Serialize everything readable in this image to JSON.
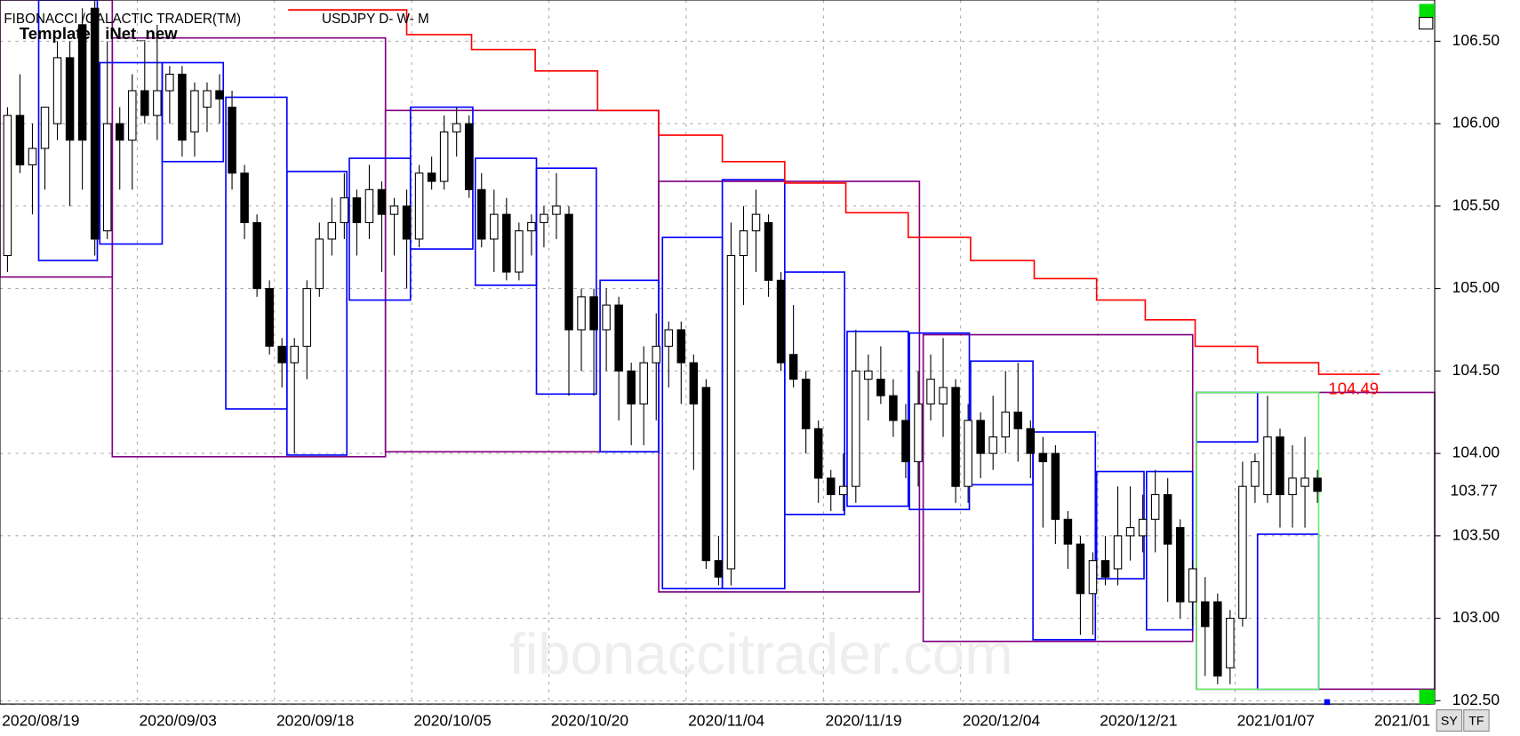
{
  "chart_data": {
    "type": "candlestick",
    "title": "FIBONACCI /GALACTIC TRADER(TM)",
    "subtitle": "USDJPY D- W- M",
    "template": "Template : iNet_new",
    "watermark": "fibonaccitrader.com",
    "buttons": [
      "SY",
      "TF"
    ],
    "up_color": "#ffffff",
    "down_color": "#000000",
    "grid": true,
    "xlim": [
      -0.6,
      114.4
    ],
    "ylim": [
      102.48,
      106.75
    ],
    "xticks": [
      {
        "value": -0.6,
        "label": "2020/08/19"
      },
      {
        "value": 10.4,
        "label": "2020/09/03"
      },
      {
        "value": 21.4,
        "label": "2020/09/18"
      },
      {
        "value": 32.4,
        "label": "2020/10/05"
      },
      {
        "value": 43.4,
        "label": "2020/10/20"
      },
      {
        "value": 54.4,
        "label": "2020/11/04"
      },
      {
        "value": 65.4,
        "label": "2020/11/19"
      },
      {
        "value": 76.4,
        "label": "2020/12/04"
      },
      {
        "value": 87.4,
        "label": "2020/12/21"
      },
      {
        "value": 98.4,
        "label": "2021/01/07"
      },
      {
        "value": 109.4,
        "label": "2021/01"
      }
    ],
    "yticks": [
      {
        "value": 106.5,
        "label": "106.50"
      },
      {
        "value": 106,
        "label": "106.00"
      },
      {
        "value": 105.5,
        "label": "105.50"
      },
      {
        "value": 105,
        "label": "105.00"
      },
      {
        "value": 104.5,
        "label": "104.50"
      },
      {
        "value": 104,
        "label": "104.00"
      },
      {
        "value": 103.5,
        "label": "103.50"
      },
      {
        "value": 103,
        "label": "103.00"
      },
      {
        "value": 102.5,
        "label": "102.50"
      }
    ],
    "last_price": 103.77,
    "resistance_label": 104.49,
    "resistance_color": "#ff0000",
    "resistance_steps": [
      [
        22.5,
        32,
        106.69
      ],
      [
        32,
        37.2,
        106.54
      ],
      [
        37.2,
        42.3,
        106.45
      ],
      [
        42.3,
        47.3,
        106.32
      ],
      [
        47.3,
        52.2,
        106.08
      ],
      [
        52.2,
        57.3,
        105.93
      ],
      [
        57.3,
        62.3,
        105.77
      ],
      [
        62.3,
        67.2,
        105.64
      ],
      [
        67.2,
        72.2,
        105.46
      ],
      [
        72.2,
        77.2,
        105.31
      ],
      [
        77.2,
        82.3,
        105.17
      ],
      [
        82.3,
        87.3,
        105.06
      ],
      [
        87.3,
        91.2,
        104.93
      ],
      [
        91.2,
        95.2,
        104.81
      ],
      [
        95.2,
        100.2,
        104.65
      ],
      [
        100.2,
        105.1,
        104.55
      ],
      [
        105.1,
        110,
        104.48
      ]
    ],
    "boxes": [
      {
        "color": "#800080",
        "x": [
          -0.6,
          8.4
        ],
        "y": [
          105.07,
          106.75
        ]
      },
      {
        "color": "#800080",
        "x": [
          8.4,
          30.3
        ],
        "y": [
          103.98,
          106.52
        ]
      },
      {
        "color": "#800080",
        "x": [
          30.3,
          52.2
        ],
        "y": [
          104.01,
          106.08
        ]
      },
      {
        "color": "#800080",
        "x": [
          52.2,
          73.1
        ],
        "y": [
          103.16,
          105.65
        ]
      },
      {
        "color": "#800080",
        "x": [
          73.4,
          95
        ],
        "y": [
          102.86,
          104.72
        ]
      },
      {
        "color": "#800080",
        "x": [
          95.3,
          114.4
        ],
        "y": [
          102.57,
          104.37
        ]
      },
      {
        "color": "#0000ff",
        "x": [
          2.5,
          7.2
        ],
        "y": [
          105.17,
          106.75
        ]
      },
      {
        "color": "#0000ff",
        "x": [
          7.4,
          12.4
        ],
        "y": [
          105.27,
          106.37
        ]
      },
      {
        "color": "#0000ff",
        "x": [
          12.4,
          17.3
        ],
        "y": [
          105.77,
          106.37
        ]
      },
      {
        "color": "#0000ff",
        "x": [
          17.5,
          22.4
        ],
        "y": [
          104.27,
          106.16
        ]
      },
      {
        "color": "#0000ff",
        "x": [
          22.4,
          27.2
        ],
        "y": [
          103.99,
          105.71
        ]
      },
      {
        "color": "#0000ff",
        "x": [
          27.4,
          32.3
        ],
        "y": [
          104.93,
          105.79
        ]
      },
      {
        "color": "#0000ff",
        "x": [
          32.3,
          37.3
        ],
        "y": [
          105.24,
          106.1
        ]
      },
      {
        "color": "#0000ff",
        "x": [
          37.5,
          42.4
        ],
        "y": [
          105.02,
          105.79
        ]
      },
      {
        "color": "#0000ff",
        "x": [
          42.4,
          47.2
        ],
        "y": [
          104.36,
          105.73
        ]
      },
      {
        "color": "#0000ff",
        "x": [
          47.5,
          52.2
        ],
        "y": [
          104.01,
          105.05
        ]
      },
      {
        "color": "#0000ff",
        "x": [
          52.5,
          57.3
        ],
        "y": [
          103.18,
          105.31
        ]
      },
      {
        "color": "#0000ff",
        "x": [
          57.3,
          62.3
        ],
        "y": [
          103.18,
          105.66
        ]
      },
      {
        "color": "#0000ff",
        "x": [
          62.3,
          67.1
        ],
        "y": [
          103.63,
          105.1
        ]
      },
      {
        "color": "#0000ff",
        "x": [
          67.3,
          72.2
        ],
        "y": [
          103.68,
          104.74
        ]
      },
      {
        "color": "#0000ff",
        "x": [
          72.3,
          77.1
        ],
        "y": [
          103.66,
          104.73
        ]
      },
      {
        "color": "#0000ff",
        "x": [
          77.2,
          82.2
        ],
        "y": [
          103.81,
          104.56
        ]
      },
      {
        "color": "#0000ff",
        "x": [
          82.2,
          87.2
        ],
        "y": [
          102.87,
          104.13
        ]
      },
      {
        "color": "#0000ff",
        "x": [
          87.3,
          91.1
        ],
        "y": [
          103.24,
          103.89
        ]
      },
      {
        "color": "#0000ff",
        "x": [
          91.3,
          95
        ],
        "y": [
          102.93,
          103.89
        ]
      },
      {
        "color": "#0000ff",
        "x": [
          95.3,
          100.2
        ],
        "y": [
          104.07,
          104.37
        ]
      },
      {
        "color": "#0000ff",
        "x": [
          100.2,
          105.1
        ],
        "y": [
          102.57,
          103.51
        ]
      },
      {
        "color": "#66ee66",
        "x": [
          95.3,
          105.1
        ],
        "y": [
          102.57,
          104.37
        ]
      }
    ],
    "ohlc": [
      [
        105.2,
        106.1,
        105.1,
        106.05
      ],
      [
        106.05,
        106.3,
        105.7,
        105.75
      ],
      [
        105.75,
        106.0,
        105.45,
        105.85
      ],
      [
        105.85,
        106.1,
        105.6,
        106.1
      ],
      [
        106.0,
        106.5,
        105.9,
        106.4
      ],
      [
        106.4,
        106.5,
        105.5,
        105.9
      ],
      [
        106.6,
        106.7,
        105.6,
        105.9
      ],
      [
        106.7,
        106.8,
        105.2,
        105.3
      ],
      [
        105.35,
        106.5,
        105.3,
        106.0
      ],
      [
        106.0,
        106.1,
        105.6,
        105.9
      ],
      [
        105.9,
        106.3,
        105.6,
        106.2
      ],
      [
        106.2,
        106.5,
        106.0,
        106.05
      ],
      [
        106.05,
        106.6,
        105.9,
        106.2
      ],
      [
        106.2,
        106.35,
        106.0,
        106.3
      ],
      [
        106.3,
        106.35,
        105.8,
        105.9
      ],
      [
        105.95,
        106.25,
        105.8,
        106.2
      ],
      [
        106.1,
        106.25,
        105.95,
        106.2
      ],
      [
        106.2,
        106.3,
        106.0,
        106.15
      ],
      [
        106.1,
        106.2,
        105.6,
        105.7
      ],
      [
        105.7,
        105.75,
        105.3,
        105.4
      ],
      [
        105.4,
        105.45,
        104.95,
        105.0
      ],
      [
        105.0,
        105.05,
        104.6,
        104.65
      ],
      [
        104.65,
        104.7,
        104.4,
        104.55
      ],
      [
        104.55,
        104.7,
        104.0,
        104.65
      ],
      [
        104.65,
        105.05,
        104.45,
        105.0
      ],
      [
        105.0,
        105.4,
        104.95,
        105.3
      ],
      [
        105.3,
        105.55,
        105.2,
        105.4
      ],
      [
        105.4,
        105.7,
        105.3,
        105.55
      ],
      [
        105.55,
        105.6,
        105.2,
        105.4
      ],
      [
        105.4,
        105.75,
        105.3,
        105.6
      ],
      [
        105.6,
        105.65,
        105.1,
        105.45
      ],
      [
        105.45,
        105.55,
        105.2,
        105.5
      ],
      [
        105.5,
        105.6,
        105.0,
        105.3
      ],
      [
        105.3,
        105.75,
        105.25,
        105.7
      ],
      [
        105.7,
        105.8,
        105.6,
        105.65
      ],
      [
        105.65,
        106.05,
        105.6,
        105.95
      ],
      [
        105.95,
        106.1,
        105.8,
        106.0
      ],
      [
        106.0,
        106.05,
        105.55,
        105.6
      ],
      [
        105.6,
        105.7,
        105.25,
        105.3
      ],
      [
        105.3,
        105.6,
        105.1,
        105.45
      ],
      [
        105.45,
        105.55,
        105.05,
        105.1
      ],
      [
        105.1,
        105.4,
        105.05,
        105.35
      ],
      [
        105.35,
        105.45,
        105.2,
        105.4
      ],
      [
        105.4,
        105.5,
        105.25,
        105.45
      ],
      [
        105.45,
        105.7,
        105.3,
        105.5
      ],
      [
        105.45,
        105.5,
        104.35,
        104.75
      ],
      [
        104.75,
        105.0,
        104.5,
        104.95
      ],
      [
        104.95,
        105.0,
        104.35,
        104.75
      ],
      [
        104.75,
        105.0,
        104.5,
        104.9
      ],
      [
        104.9,
        104.95,
        104.2,
        104.5
      ],
      [
        104.5,
        104.55,
        104.05,
        104.3
      ],
      [
        104.3,
        104.65,
        104.05,
        104.55
      ],
      [
        104.55,
        104.85,
        104.2,
        104.65
      ],
      [
        104.65,
        104.8,
        104.4,
        104.75
      ],
      [
        104.75,
        104.8,
        104.3,
        104.55
      ],
      [
        104.55,
        104.6,
        103.9,
        104.3
      ],
      [
        104.4,
        104.45,
        103.3,
        103.35
      ],
      [
        103.35,
        103.5,
        103.2,
        103.25
      ],
      [
        103.3,
        105.4,
        103.2,
        105.2
      ],
      [
        105.2,
        105.5,
        104.9,
        105.35
      ],
      [
        105.35,
        105.6,
        105.1,
        105.45
      ],
      [
        105.4,
        105.45,
        104.95,
        105.05
      ],
      [
        105.05,
        105.1,
        104.5,
        104.55
      ],
      [
        104.6,
        104.9,
        104.4,
        104.45
      ],
      [
        104.45,
        104.5,
        104.0,
        104.15
      ],
      [
        104.15,
        104.2,
        103.7,
        103.85
      ],
      [
        103.85,
        103.9,
        103.65,
        103.75
      ],
      [
        103.75,
        104.0,
        103.65,
        103.8
      ],
      [
        103.8,
        104.75,
        103.7,
        104.5
      ],
      [
        104.45,
        104.6,
        104.2,
        104.5
      ],
      [
        104.45,
        104.65,
        104.3,
        104.35
      ],
      [
        104.35,
        104.45,
        104.1,
        104.2
      ],
      [
        104.2,
        104.3,
        103.85,
        103.95
      ],
      [
        103.95,
        104.5,
        103.8,
        104.3
      ],
      [
        104.3,
        104.6,
        104.2,
        104.45
      ],
      [
        104.3,
        104.7,
        104.1,
        104.4
      ],
      [
        104.4,
        104.45,
        103.7,
        103.8
      ],
      [
        103.8,
        104.3,
        103.7,
        104.2
      ],
      [
        104.2,
        104.25,
        103.85,
        104.0
      ],
      [
        104.0,
        104.35,
        103.9,
        104.1
      ],
      [
        104.1,
        104.5,
        104.0,
        104.25
      ],
      [
        104.25,
        104.55,
        103.95,
        104.15
      ],
      [
        104.15,
        104.2,
        103.85,
        104.0
      ],
      [
        104.0,
        104.1,
        103.55,
        103.95
      ],
      [
        104.0,
        104.05,
        103.45,
        103.6
      ],
      [
        103.6,
        103.65,
        103.3,
        103.45
      ],
      [
        103.45,
        103.5,
        102.9,
        103.15
      ],
      [
        103.15,
        103.4,
        102.9,
        103.35
      ],
      [
        103.35,
        103.5,
        103.2,
        103.25
      ],
      [
        103.3,
        103.8,
        103.2,
        103.5
      ],
      [
        103.5,
        103.8,
        103.35,
        103.55
      ],
      [
        103.5,
        103.75,
        103.4,
        103.6
      ],
      [
        103.6,
        103.9,
        103.4,
        103.75
      ],
      [
        103.75,
        103.85,
        103.1,
        103.45
      ],
      [
        103.55,
        103.6,
        103.0,
        103.1
      ],
      [
        103.1,
        103.35,
        102.95,
        103.3
      ],
      [
        103.1,
        103.25,
        102.65,
        102.95
      ],
      [
        103.1,
        103.15,
        102.6,
        102.65
      ],
      [
        102.7,
        103.05,
        102.6,
        103.0
      ],
      [
        103.0,
        103.95,
        102.95,
        103.8
      ],
      [
        103.8,
        104.0,
        103.7,
        103.95
      ],
      [
        103.75,
        104.35,
        103.7,
        104.1
      ],
      [
        104.1,
        104.15,
        103.55,
        103.75
      ],
      [
        103.75,
        104.05,
        103.55,
        103.85
      ],
      [
        103.8,
        104.1,
        103.55,
        103.85
      ],
      [
        103.85,
        103.9,
        103.7,
        103.77
      ]
    ]
  }
}
